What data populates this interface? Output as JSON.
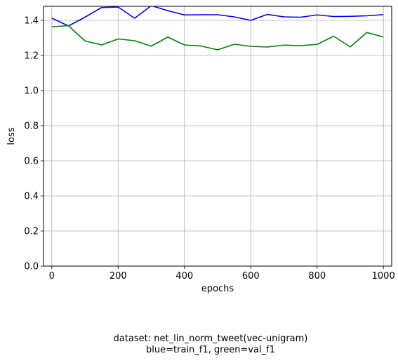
{
  "chart_data": {
    "type": "line",
    "xlabel": "epochs",
    "ylabel": "loss",
    "xlim": [
      -25,
      1025
    ],
    "ylim": [
      0.0,
      1.48
    ],
    "xticks": [
      0,
      200,
      400,
      600,
      800,
      1000
    ],
    "xtick_labels": [
      "0",
      "200",
      "400",
      "600",
      "800",
      "1000"
    ],
    "yticks": [
      0.0,
      0.2,
      0.4,
      0.6,
      0.8,
      1.0,
      1.2,
      1.4
    ],
    "ytick_labels": [
      "0.0",
      "0.2",
      "0.4",
      "0.6",
      "0.8",
      "1.0",
      "1.2",
      "1.4"
    ],
    "grid": true,
    "x": [
      0,
      50,
      100,
      150,
      200,
      250,
      300,
      350,
      400,
      450,
      500,
      550,
      600,
      650,
      700,
      750,
      800,
      850,
      900,
      950,
      1000
    ],
    "series": [
      {
        "color": "#0000ff",
        "values": [
          1.413,
          1.368,
          1.418,
          1.473,
          1.476,
          1.412,
          1.484,
          1.455,
          1.431,
          1.432,
          1.432,
          1.42,
          1.4,
          1.434,
          1.42,
          1.418,
          1.431,
          1.422,
          1.423,
          1.426,
          1.433
        ]
      },
      {
        "color": "#008000",
        "values": [
          1.363,
          1.37,
          1.283,
          1.26,
          1.294,
          1.284,
          1.253,
          1.305,
          1.26,
          1.254,
          1.232,
          1.264,
          1.252,
          1.248,
          1.259,
          1.256,
          1.263,
          1.31,
          1.249,
          1.331,
          1.305
        ]
      }
    ],
    "caption_lines": [
      "dataset: net_lin_norm_tweet(vec-unigram)",
      "blue=train_f1, green=val_f1"
    ]
  }
}
